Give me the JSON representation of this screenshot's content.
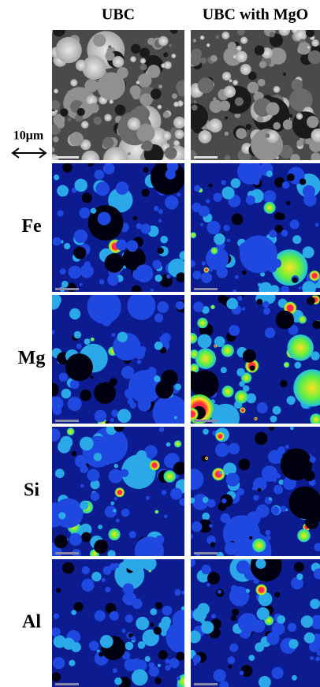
{
  "header": {
    "columns": [
      "UBC",
      "UBC with MgO"
    ]
  },
  "scale_bar": {
    "label": "10μm"
  },
  "rows": [
    "Fe",
    "Mg",
    "Si",
    "Al"
  ]
}
